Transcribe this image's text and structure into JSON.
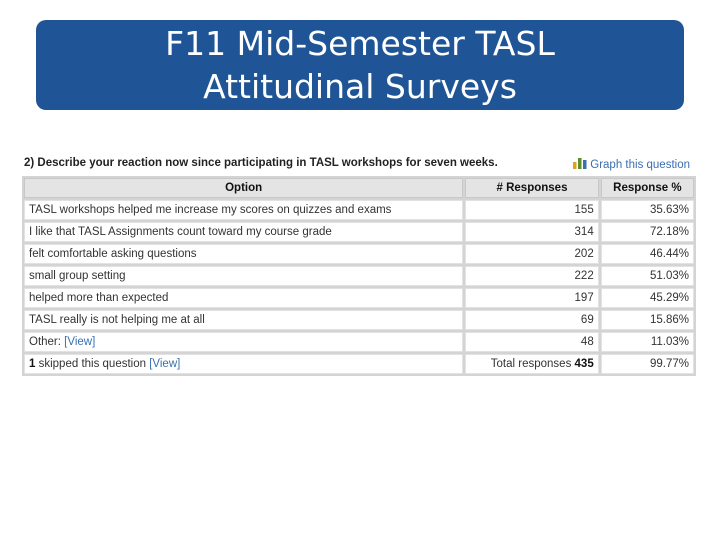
{
  "banner": {
    "title_line1": "F11 Mid-Semester TASL",
    "title_line2": "Attitudinal Surveys"
  },
  "question": {
    "text": "2) Describe your reaction now since participating in TASL workshops for seven weeks.",
    "graph_link": "Graph this question",
    "graph_icon": "bar-chart-icon"
  },
  "table": {
    "headers": {
      "option": "Option",
      "responses": "# Responses",
      "percent": "Response %"
    },
    "rows": [
      {
        "option": "TASL workshops helped me increase my scores on quizzes and exams",
        "responses": "155",
        "percent": "35.63%"
      },
      {
        "option": "I like that TASL Assignments count toward my course grade",
        "responses": "314",
        "percent": "72.18%"
      },
      {
        "option": "felt comfortable asking questions",
        "responses": "202",
        "percent": "46.44%"
      },
      {
        "option": "small group setting",
        "responses": "222",
        "percent": "51.03%"
      },
      {
        "option": "helped more than expected",
        "responses": "197",
        "percent": "45.29%"
      },
      {
        "option": "TASL really is not helping me at all",
        "responses": "69",
        "percent": "15.86%"
      },
      {
        "option_label": "Other:",
        "view_link": "[View]",
        "responses": "48",
        "percent": "11.03%"
      }
    ],
    "footer": {
      "skipped_count": "1",
      "skipped_text": "skipped this question",
      "view_link": "[View]",
      "total_label": "Total responses",
      "total_value": "435",
      "percent": "99.77%"
    }
  }
}
